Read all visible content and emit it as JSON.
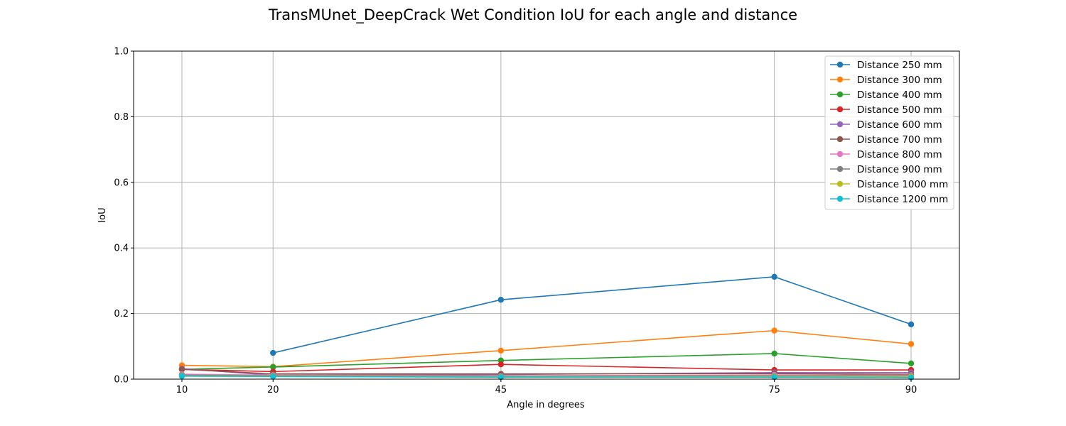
{
  "chart_data": {
    "type": "line",
    "title": "TransMUnet_DeepCrack Wet Condition IoU for each angle and distance",
    "xlabel": "Angle in degrees",
    "ylabel": "IoU",
    "x": [
      10,
      20,
      45,
      75,
      90
    ],
    "xticks": [
      "10",
      "20",
      "45",
      "75",
      "90"
    ],
    "xlim": [
      4.7,
      95.3
    ],
    "ylim": [
      0,
      1.0
    ],
    "yticks": [
      "0.0",
      "0.2",
      "0.4",
      "0.6",
      "0.8",
      "1.0"
    ],
    "grid": true,
    "legend_position": "top-right",
    "series": [
      {
        "name": "Distance 250 mm",
        "color": "#1f77b4",
        "values": [
          null,
          0.08,
          0.242,
          0.312,
          0.167
        ]
      },
      {
        "name": "Distance 300 mm",
        "color": "#ff7f0e",
        "values": [
          0.042,
          0.038,
          0.087,
          0.148,
          0.107
        ]
      },
      {
        "name": "Distance 400 mm",
        "color": "#2ca02c",
        "values": [
          0.03,
          0.037,
          0.057,
          0.078,
          0.048
        ]
      },
      {
        "name": "Distance 500 mm",
        "color": "#d62728",
        "values": [
          0.03,
          0.023,
          0.045,
          0.028,
          0.028
        ]
      },
      {
        "name": "Distance 600 mm",
        "color": "#9467bd",
        "values": [
          0.032,
          0.012,
          0.014,
          0.02,
          0.02
        ]
      },
      {
        "name": "Distance 700 mm",
        "color": "#8c564b",
        "values": [
          0.03,
          0.016,
          0.016,
          0.017,
          0.015
        ]
      },
      {
        "name": "Distance 800 mm",
        "color": "#e377c2",
        "values": [
          0.015,
          0.012,
          0.01,
          0.013,
          0.012
        ]
      },
      {
        "name": "Distance 900 mm",
        "color": "#7f7f7f",
        "values": [
          0.012,
          0.01,
          0.009,
          0.01,
          0.01
        ]
      },
      {
        "name": "Distance 1000 mm",
        "color": "#bcbd22",
        "values": [
          0.01,
          0.009,
          0.007,
          0.008,
          0.008
        ]
      },
      {
        "name": "Distance 1200 mm",
        "color": "#17becf",
        "values": [
          0.009,
          0.008,
          0.006,
          0.006,
          0.005
        ]
      }
    ]
  }
}
